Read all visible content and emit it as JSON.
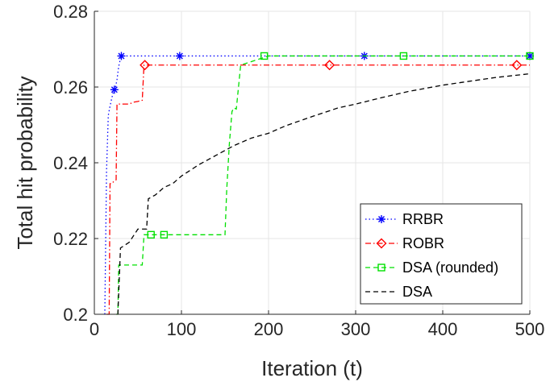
{
  "chart_data": {
    "type": "line",
    "xlabel": "Iteration (t)",
    "ylabel": "Total hit probability",
    "xlim": [
      0,
      500
    ],
    "ylim": [
      0.2,
      0.28
    ],
    "xticks": [
      0,
      100,
      200,
      300,
      400,
      500
    ],
    "xtick_labels": [
      "0",
      "100",
      "200",
      "300",
      "400",
      "500"
    ],
    "yticks": [
      0.2,
      0.22,
      0.24,
      0.26,
      0.28
    ],
    "ytick_labels": [
      "0.2",
      "0.22",
      "0.24",
      "0.26",
      "0.28"
    ],
    "grid": true,
    "legend_position": "bottom-right",
    "series": [
      {
        "name": "RRBR",
        "color": "#0000ff",
        "line_style": "dotted",
        "marker": "asterisk",
        "x": [
          12,
          14,
          16,
          18,
          20,
          22,
          24,
          26,
          28,
          30,
          32,
          98,
          310,
          500
        ],
        "y": [
          0.2,
          0.238,
          0.2525,
          0.255,
          0.257,
          0.259,
          0.2595,
          0.262,
          0.2655,
          0.2675,
          0.2682,
          0.2682,
          0.2682,
          0.2682
        ],
        "marker_x": [
          23,
          31,
          98,
          310,
          500
        ],
        "marker_y": [
          0.2593,
          0.2682,
          0.2682,
          0.2682,
          0.2682
        ]
      },
      {
        "name": "ROBR",
        "color": "#ff0000",
        "line_style": "dashdot",
        "marker": "diamond",
        "x": [
          14,
          17,
          18,
          20,
          22,
          25,
          26,
          28,
          40,
          45,
          50,
          55,
          57,
          485,
          500
        ],
        "y": [
          0.2,
          0.2,
          0.2345,
          0.2345,
          0.235,
          0.2355,
          0.2555,
          0.2555,
          0.2555,
          0.256,
          0.2562,
          0.2565,
          0.2658,
          0.2658,
          0.2658
        ],
        "marker_x": [
          58,
          270,
          485
        ],
        "marker_y": [
          0.2658,
          0.2658,
          0.2658
        ]
      },
      {
        "name": "DSA (rounded)",
        "color": "#00e000",
        "line_style": "dashed",
        "marker": "square",
        "x": [
          25,
          27,
          28,
          55,
          57,
          60,
          150,
          152,
          155,
          158,
          160,
          163,
          168,
          200,
          500
        ],
        "y": [
          0.2,
          0.2,
          0.213,
          0.213,
          0.221,
          0.221,
          0.221,
          0.233,
          0.245,
          0.2535,
          0.2545,
          0.2542,
          0.2658,
          0.2682,
          0.2682
        ],
        "marker_x": [
          65,
          80,
          195,
          355,
          500
        ],
        "marker_y": [
          0.221,
          0.221,
          0.2682,
          0.2682,
          0.2682
        ]
      },
      {
        "name": "DSA",
        "color": "#000000",
        "line_style": "dashed",
        "marker": "none",
        "x": [
          27,
          30,
          40,
          50,
          60,
          62,
          70,
          80,
          90,
          100,
          110,
          120,
          140,
          160,
          180,
          200,
          220,
          250,
          280,
          300,
          330,
          360,
          400,
          430,
          460,
          500
        ],
        "y": [
          0.2,
          0.2175,
          0.219,
          0.2225,
          0.2225,
          0.2305,
          0.2315,
          0.2335,
          0.2345,
          0.2365,
          0.238,
          0.2395,
          0.242,
          0.2445,
          0.2465,
          0.2478,
          0.2498,
          0.2522,
          0.2545,
          0.2555,
          0.2572,
          0.2588,
          0.2605,
          0.2615,
          0.2625,
          0.2635
        ]
      }
    ]
  }
}
